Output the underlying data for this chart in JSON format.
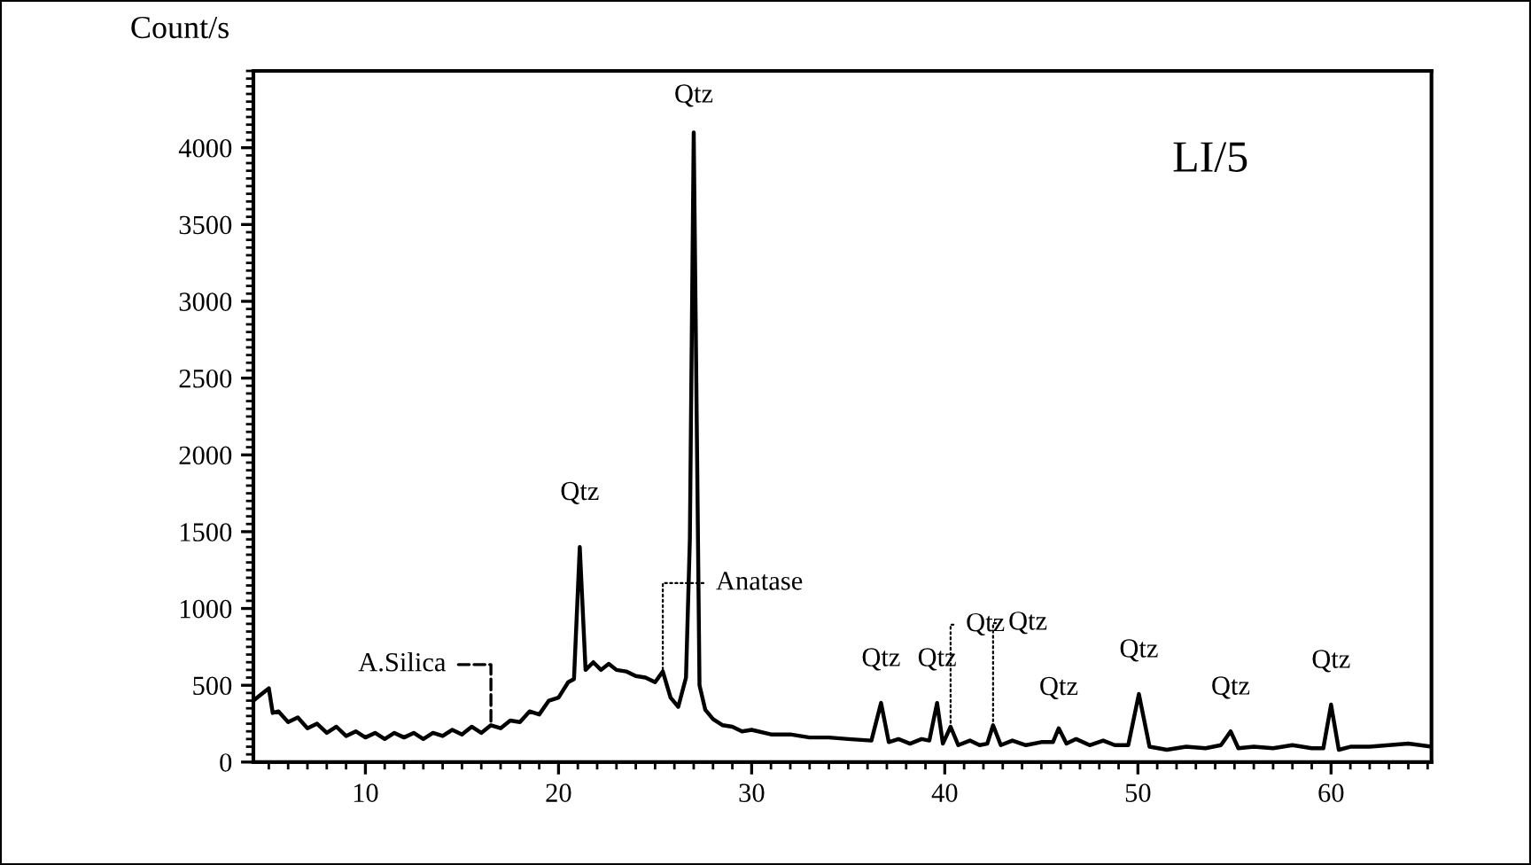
{
  "chart_data": {
    "type": "line",
    "title": "LI/5",
    "ylabel": "Count/s",
    "color": "#000000",
    "marker": "none",
    "line_style": "solid",
    "grid": false,
    "x": [
      4.2,
      4.6,
      5.0,
      5.2,
      5.5,
      6.0,
      6.5,
      7.0,
      7.5,
      8.0,
      8.5,
      9.0,
      9.5,
      10.0,
      10.5,
      11.0,
      11.5,
      12.0,
      12.5,
      13.0,
      13.5,
      14.0,
      14.5,
      15.0,
      15.5,
      16.0,
      16.5,
      17.0,
      17.5,
      18.0,
      18.5,
      19.0,
      19.5,
      20.0,
      20.5,
      20.8,
      21.1,
      21.4,
      21.8,
      22.2,
      22.6,
      23.0,
      23.5,
      24.0,
      24.5,
      25.0,
      25.4,
      25.8,
      26.2,
      26.6,
      26.8,
      27.0,
      27.3,
      27.6,
      28.0,
      28.5,
      29.0,
      29.5,
      30.0,
      31.0,
      32.0,
      33.0,
      34.0,
      35.0,
      36.2,
      36.7,
      37.1,
      37.6,
      38.2,
      38.8,
      39.2,
      39.6,
      39.9,
      40.3,
      40.7,
      41.3,
      41.8,
      42.2,
      42.5,
      42.9,
      43.5,
      44.2,
      45.0,
      45.6,
      45.9,
      46.3,
      46.8,
      47.5,
      48.2,
      48.8,
      49.5,
      50.05,
      50.6,
      51.5,
      52.5,
      53.5,
      54.3,
      54.8,
      55.2,
      56.0,
      57.0,
      58.0,
      59.0,
      59.6,
      60.0,
      60.4,
      61.0,
      62.0,
      63.0,
      64.0,
      65.2
    ],
    "values": [
      400,
      440,
      480,
      320,
      330,
      260,
      290,
      220,
      250,
      190,
      230,
      170,
      200,
      160,
      190,
      150,
      190,
      160,
      190,
      150,
      190,
      170,
      210,
      180,
      230,
      190,
      240,
      220,
      270,
      260,
      330,
      310,
      400,
      420,
      520,
      540,
      1400,
      600,
      650,
      600,
      640,
      600,
      590,
      560,
      550,
      520,
      590,
      420,
      360,
      550,
      1450,
      4100,
      500,
      340,
      280,
      240,
      230,
      200,
      210,
      180,
      180,
      160,
      160,
      150,
      140,
      385,
      130,
      150,
      120,
      150,
      140,
      385,
      120,
      230,
      110,
      140,
      110,
      120,
      240,
      110,
      140,
      110,
      130,
      130,
      220,
      120,
      150,
      110,
      140,
      110,
      110,
      443,
      100,
      80,
      100,
      90,
      110,
      200,
      90,
      100,
      90,
      110,
      90,
      90,
      374,
      80,
      100,
      100,
      110,
      120,
      100
    ],
    "xlim": [
      4.2,
      65.2
    ],
    "xticks": [
      10,
      20,
      30,
      40,
      50,
      60
    ],
    "ylim": [
      0,
      4500
    ],
    "yticks": [
      0,
      500,
      1000,
      1500,
      2000,
      2500,
      3000,
      3500,
      4000
    ],
    "annotations": [
      {
        "text": "Qtz",
        "x": 21.1,
        "y": 1400
      },
      {
        "text": "Qtz",
        "x": 27.0,
        "y": 4100
      },
      {
        "text": "A.Silica",
        "x": 16.5,
        "y": 240
      },
      {
        "text": "Anatase",
        "x": 25.4,
        "y": 590
      },
      {
        "text": "Qtz",
        "x": 36.7,
        "y": 385
      },
      {
        "text": "Qtz",
        "x": 39.6,
        "y": 385
      },
      {
        "text": "Qtz",
        "x": 40.3,
        "y": 230
      },
      {
        "text": "Qtz",
        "x": 42.5,
        "y": 240
      },
      {
        "text": "Qtz",
        "x": 45.9,
        "y": 220
      },
      {
        "text": "Qtz",
        "x": 50.05,
        "y": 443
      },
      {
        "text": "Qtz",
        "x": 54.8,
        "y": 200
      },
      {
        "text": "Qtz",
        "x": 60.0,
        "y": 374
      }
    ]
  }
}
